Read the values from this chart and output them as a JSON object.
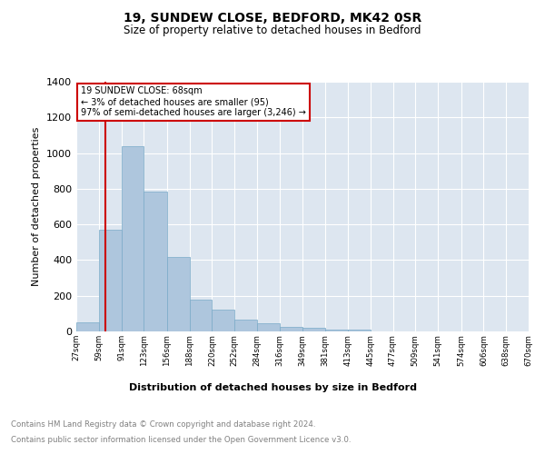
{
  "title1": "19, SUNDEW CLOSE, BEDFORD, MK42 0SR",
  "title2": "Size of property relative to detached houses in Bedford",
  "xlabel": "Distribution of detached houses by size in Bedford",
  "ylabel": "Number of detached properties",
  "footer1": "Contains HM Land Registry data © Crown copyright and database right 2024.",
  "footer2": "Contains public sector information licensed under the Open Government Licence v3.0.",
  "annotation_line1": "19 SUNDEW CLOSE: 68sqm",
  "annotation_line2": "← 3% of detached houses are smaller (95)",
  "annotation_line3": "97% of semi-detached houses are larger (3,246) →",
  "categories": [
    "27sqm",
    "59sqm",
    "91sqm",
    "123sqm",
    "156sqm",
    "188sqm",
    "220sqm",
    "252sqm",
    "284sqm",
    "316sqm",
    "349sqm",
    "381sqm",
    "413sqm",
    "445sqm",
    "477sqm",
    "509sqm",
    "541sqm",
    "574sqm",
    "606sqm",
    "638sqm",
    "670sqm"
  ],
  "bin_edges": [
    27,
    59,
    91,
    123,
    156,
    188,
    220,
    252,
    284,
    316,
    349,
    381,
    413,
    445,
    477,
    509,
    541,
    574,
    606,
    638,
    670
  ],
  "hist_values": [
    50,
    570,
    1040,
    785,
    420,
    180,
    120,
    65,
    47,
    25,
    20,
    12,
    10,
    0,
    0,
    0,
    0,
    0,
    0,
    0
  ],
  "bar_color": "#aec6dd",
  "bar_edge_color": "#7aaac8",
  "vline_x": 68,
  "vline_color": "#cc0000",
  "bg_color": "#dde6f0",
  "annotation_box_color": "#ffffff",
  "annotation_box_edge": "#cc0000",
  "ylim": [
    0,
    1400
  ],
  "yticks": [
    0,
    200,
    400,
    600,
    800,
    1000,
    1200,
    1400
  ]
}
